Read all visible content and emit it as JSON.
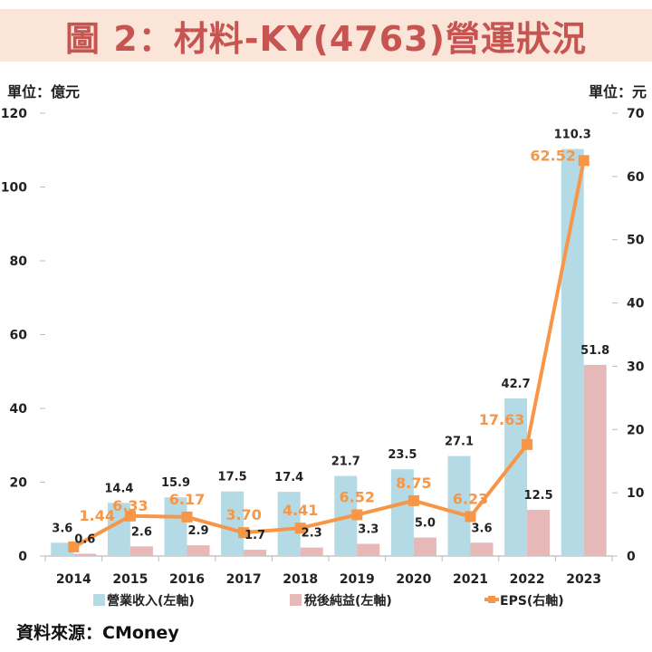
{
  "title": "圖 2：材料-KY(4763)營運狀況",
  "left_unit": "單位：億元",
  "right_unit": "單位：元",
  "source": "資料來源：CMoney",
  "colors": {
    "revenue": "#b4dbe5",
    "net_income": "#e6b8b7",
    "eps": "#f79646",
    "title": "#c65552",
    "title_bg": "#fbe4d8"
  },
  "chart_data": {
    "type": "bar+line",
    "categories": [
      "2014",
      "2015",
      "2016",
      "2017",
      "2018",
      "2019",
      "2020",
      "2021",
      "2022",
      "2023"
    ],
    "series": [
      {
        "name": "營業收入(左軸)",
        "type": "bar",
        "axis": "left",
        "values": [
          3.6,
          14.4,
          15.9,
          17.5,
          17.4,
          21.7,
          23.5,
          27.1,
          42.7,
          110.3
        ]
      },
      {
        "name": "稅後純益(左軸)",
        "type": "bar",
        "axis": "left",
        "values": [
          0.6,
          2.6,
          2.9,
          1.7,
          2.3,
          3.3,
          5.0,
          3.6,
          12.5,
          51.8
        ]
      },
      {
        "name": "EPS(右軸)",
        "type": "line",
        "axis": "right",
        "values": [
          1.44,
          6.33,
          6.17,
          3.7,
          4.41,
          6.52,
          8.75,
          6.23,
          17.63,
          62.52
        ]
      }
    ],
    "labels": {
      "revenue": [
        "3.6",
        "14.4",
        "15.9",
        "17.5",
        "17.4",
        "21.7",
        "23.5",
        "27.1",
        "42.7",
        "110.3"
      ],
      "net_income": [
        "0.6",
        "2.6",
        "2.9",
        "1.7",
        "2.3",
        "3.3",
        "5.0",
        "3.6",
        "12.5",
        "51.8"
      ],
      "eps": [
        "1.44",
        "6.33",
        "6.17",
        "3.70",
        "4.41",
        "6.52",
        "8.75",
        "6.23",
        "17.63",
        "62.52"
      ]
    },
    "left_axis": {
      "range": [
        0,
        120
      ],
      "ticks": [
        "0",
        "20",
        "40",
        "60",
        "80",
        "100",
        "120"
      ]
    },
    "right_axis": {
      "range": [
        0,
        70
      ],
      "ticks": [
        "0",
        "10",
        "20",
        "30",
        "40",
        "50",
        "60",
        "70"
      ]
    },
    "grid": false,
    "legend_position": "bottom"
  }
}
